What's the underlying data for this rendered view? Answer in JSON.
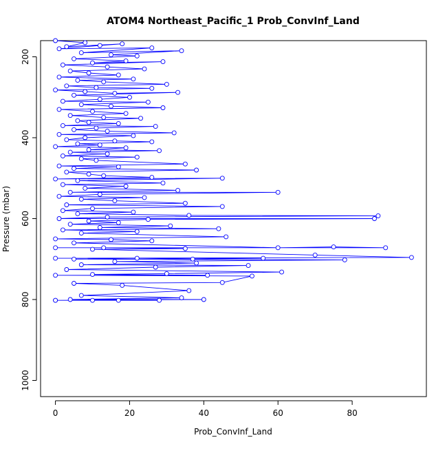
{
  "chart_data": {
    "type": "scatter",
    "title": "ATOM4 Northeast_Pacific_1 Prob_ConvInf_Land",
    "xlabel": "Prob_ConvInf_Land",
    "ylabel": "Pressure (mbar)",
    "xlim": [
      -4,
      100
    ],
    "ylim": [
      1040,
      160
    ],
    "y_reversed": true,
    "x_ticks": [
      0,
      20,
      40,
      60,
      80
    ],
    "y_ticks": [
      200,
      400,
      600,
      800,
      1000
    ],
    "grid": false,
    "legend": "none",
    "marker": "open-circle",
    "connect_points": true,
    "series": [
      {
        "color": "#0000ff",
        "points": [
          [
            0,
            160
          ],
          [
            8,
            165
          ],
          [
            3,
            175
          ],
          [
            18,
            168
          ],
          [
            12,
            172
          ],
          [
            1,
            180
          ],
          [
            26,
            178
          ],
          [
            7,
            190
          ],
          [
            34,
            185
          ],
          [
            15,
            195
          ],
          [
            22,
            198
          ],
          [
            5,
            205
          ],
          [
            19,
            210
          ],
          [
            10,
            215
          ],
          [
            29,
            212
          ],
          [
            2,
            220
          ],
          [
            14,
            225
          ],
          [
            24,
            230
          ],
          [
            4,
            235
          ],
          [
            9,
            240
          ],
          [
            17,
            245
          ],
          [
            1,
            250
          ],
          [
            21,
            255
          ],
          [
            6,
            258
          ],
          [
            13,
            262
          ],
          [
            30,
            268
          ],
          [
            3,
            272
          ],
          [
            11,
            276
          ],
          [
            26,
            278
          ],
          [
            0,
            282
          ],
          [
            8,
            286
          ],
          [
            16,
            290
          ],
          [
            33,
            288
          ],
          [
            5,
            295
          ],
          [
            20,
            300
          ],
          [
            12,
            305
          ],
          [
            2,
            310
          ],
          [
            25,
            312
          ],
          [
            7,
            318
          ],
          [
            15,
            322
          ],
          [
            29,
            326
          ],
          [
            1,
            330
          ],
          [
            10,
            335
          ],
          [
            19,
            340
          ],
          [
            4,
            345
          ],
          [
            13,
            350
          ],
          [
            23,
            352
          ],
          [
            6,
            358
          ],
          [
            9,
            362
          ],
          [
            17,
            365
          ],
          [
            2,
            370
          ],
          [
            27,
            372
          ],
          [
            11,
            376
          ],
          [
            5,
            380
          ],
          [
            14,
            384
          ],
          [
            32,
            388
          ],
          [
            1,
            392
          ],
          [
            21,
            395
          ],
          [
            8,
            400
          ],
          [
            3,
            405
          ],
          [
            16,
            408
          ],
          [
            26,
            410
          ],
          [
            6,
            415
          ],
          [
            12,
            418
          ],
          [
            0,
            422
          ],
          [
            19,
            425
          ],
          [
            9,
            430
          ],
          [
            28,
            432
          ],
          [
            4,
            436
          ],
          [
            14,
            440
          ],
          [
            2,
            445
          ],
          [
            22,
            448
          ],
          [
            7,
            452
          ],
          [
            11,
            456
          ],
          [
            35,
            465
          ],
          [
            1,
            470
          ],
          [
            17,
            472
          ],
          [
            5,
            476
          ],
          [
            38,
            480
          ],
          [
            3,
            485
          ],
          [
            9,
            490
          ],
          [
            13,
            494
          ],
          [
            26,
            498
          ],
          [
            0,
            502
          ],
          [
            45,
            500
          ],
          [
            6,
            506
          ],
          [
            29,
            512
          ],
          [
            2,
            516
          ],
          [
            19,
            520
          ],
          [
            8,
            525
          ],
          [
            33,
            530
          ],
          [
            4,
            535
          ],
          [
            60,
            535
          ],
          [
            12,
            540
          ],
          [
            1,
            545
          ],
          [
            24,
            548
          ],
          [
            7,
            552
          ],
          [
            16,
            556
          ],
          [
            35,
            562
          ],
          [
            3,
            566
          ],
          [
            45,
            570
          ],
          [
            10,
            575
          ],
          [
            2,
            580
          ],
          [
            21,
            584
          ],
          [
            6,
            588
          ],
          [
            36,
            592
          ],
          [
            87,
            593
          ],
          [
            14,
            596
          ],
          [
            1,
            600
          ],
          [
            86,
            600
          ],
          [
            25,
            602
          ],
          [
            9,
            606
          ],
          [
            17,
            610
          ],
          [
            4,
            614
          ],
          [
            31,
            618
          ],
          [
            12,
            622
          ],
          [
            44,
            625
          ],
          [
            2,
            628
          ],
          [
            22,
            632
          ],
          [
            7,
            636
          ],
          [
            46,
            645
          ],
          [
            0,
            650
          ],
          [
            15,
            652
          ],
          [
            26,
            655
          ],
          [
            5,
            660
          ],
          [
            60,
            672
          ],
          [
            75,
            670
          ],
          [
            89,
            672
          ],
          [
            0,
            672
          ],
          [
            13,
            672
          ],
          [
            35,
            674
          ],
          [
            10,
            676
          ],
          [
            70,
            690
          ],
          [
            96,
            696
          ],
          [
            0,
            698
          ],
          [
            56,
            698
          ],
          [
            37,
            700
          ],
          [
            22,
            698
          ],
          [
            5,
            700
          ],
          [
            78,
            702
          ],
          [
            16,
            706
          ],
          [
            38,
            710
          ],
          [
            7,
            714
          ],
          [
            52,
            716
          ],
          [
            27,
            720
          ],
          [
            3,
            726
          ],
          [
            61,
            732
          ],
          [
            30,
            736
          ],
          [
            10,
            738
          ],
          [
            41,
            740
          ],
          [
            0,
            740
          ],
          [
            53,
            742
          ],
          [
            45,
            758
          ],
          [
            5,
            760
          ],
          [
            18,
            765
          ],
          [
            36,
            778
          ],
          [
            7,
            790
          ],
          [
            34,
            796
          ],
          [
            4,
            800
          ],
          [
            40,
            800
          ],
          [
            0,
            802
          ],
          [
            17,
            802
          ],
          [
            10,
            802
          ],
          [
            28,
            802
          ],
          [
            0,
            802
          ]
        ]
      }
    ]
  }
}
